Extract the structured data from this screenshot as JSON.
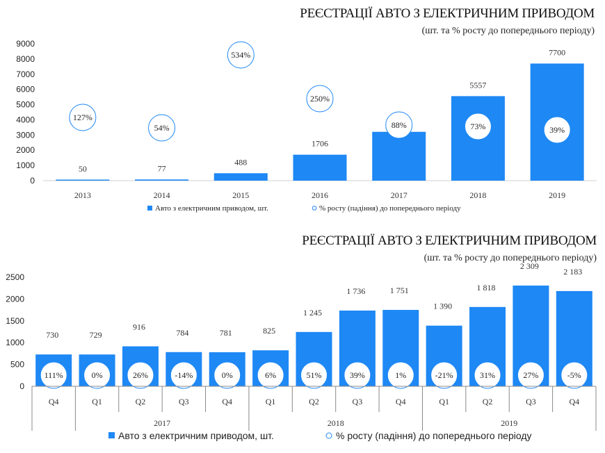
{
  "colors": {
    "bar": "#1e88f5",
    "circle_stroke": "#1e88f5",
    "axis": "#d0d0d0",
    "table_line": "#888888"
  },
  "chart_data": [
    {
      "type": "bar",
      "title": "РЕЄСТРАЦІЇ АВТО З ЕЛЕКТРИЧНИМ ПРИВОДОМ",
      "subtitle": "(шт. та % росту до попереднього періоду)",
      "categories": [
        "2013",
        "2014",
        "2015",
        "2016",
        "2017",
        "2018",
        "2019"
      ],
      "series": [
        {
          "name": "Авто з електричним приводом, шт.",
          "values": [
            50,
            77,
            488,
            1706,
            3210,
            5557,
            7700
          ],
          "labels": [
            "50",
            "77",
            "488",
            "1706",
            "3210",
            "5557",
            "7700"
          ]
        },
        {
          "name": "% росту (падіння) до попереднього періоду",
          "values": [
            127,
            54,
            534,
            250,
            88,
            73,
            39
          ],
          "labels": [
            "127%",
            "54%",
            "534%",
            "250%",
            "88%",
            "73%",
            "39%"
          ]
        }
      ],
      "ylim": [
        0,
        9000
      ],
      "yticks": [
        "0",
        "1000",
        "2000",
        "3000",
        "4000",
        "5000",
        "6000",
        "7000",
        "8000",
        "9000"
      ],
      "legend": "bottom"
    },
    {
      "type": "bar",
      "title": "РЕЄСТРАЦІЇ АВТО З ЕЛЕКТРИЧНИМ ПРИВОДОМ",
      "subtitle": "(шт. та % росту до попереднього періоду)",
      "categories": [
        "Q4",
        "Q1",
        "Q2",
        "Q3",
        "Q4",
        "Q1",
        "Q2",
        "Q3",
        "Q4",
        "Q1",
        "Q2",
        "Q3",
        "Q4"
      ],
      "groups": [
        {
          "label": "",
          "count": 1
        },
        {
          "label": "2017",
          "count": 4
        },
        {
          "label": "2018",
          "count": 4
        },
        {
          "label": "2019",
          "count": 4
        }
      ],
      "series": [
        {
          "name": "Авто з електричним приводом, шт.",
          "values": [
            730,
            729,
            916,
            784,
            781,
            825,
            1245,
            1736,
            1751,
            1390,
            1818,
            2309,
            2183
          ],
          "labels": [
            "730",
            "729",
            "916",
            "784",
            "781",
            "825",
            "1 245",
            "1 736",
            "1 751",
            "1 390",
            "1 818",
            "2 309",
            "2 183"
          ]
        },
        {
          "name": "% росту (падіння) до попереднього періоду",
          "values": [
            111,
            0,
            26,
            -14,
            0,
            6,
            51,
            39,
            1,
            -21,
            31,
            27,
            -5
          ],
          "labels": [
            "111%",
            "0%",
            "26%",
            "-14%",
            "0%",
            "6%",
            "51%",
            "39%",
            "1%",
            "-21%",
            "31%",
            "27%",
            "-5%"
          ]
        }
      ],
      "ylim": [
        0,
        2500
      ],
      "yticks": [
        "0",
        "500",
        "1000",
        "1500",
        "2000",
        "2500"
      ],
      "legend": "bottom"
    }
  ]
}
